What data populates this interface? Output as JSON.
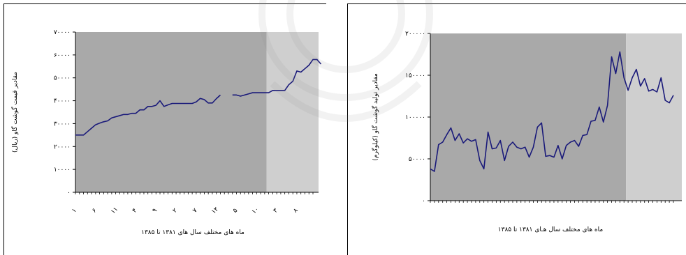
{
  "chart_data": [
    {
      "type": "line",
      "title": "",
      "xlabel": "ماه های مختلف سال های ۱۳۸۱ تا ۱۳۸۵",
      "ylabel": "مقادیر قیمت گوشت گاو (ریال)",
      "ylim": [
        0,
        70000
      ],
      "yticks": [
        0,
        10000,
        20000,
        30000,
        40000,
        50000,
        60000,
        70000
      ],
      "ytick_labels": [
        "۰",
        "۱۰۰۰۰",
        "۲۰۰۰۰",
        "۳۰۰۰۰",
        "۴۰۰۰۰",
        "۵۰۰۰۰",
        "۶۰۰۰۰",
        "۷۰۰۰۰"
      ],
      "xtick_labels": [
        "۱",
        "۶",
        "۱۱",
        "۴",
        "۹",
        "۲",
        "۷",
        "۱۲",
        "۵",
        "۱۰",
        "۳",
        "۸"
      ],
      "n_points": 60,
      "shaded_regions": [
        {
          "from": 1,
          "to": 48,
          "color": "#a9a9a9"
        },
        {
          "from": 49,
          "to": 60,
          "color": "#cfcfcf"
        }
      ],
      "series": [
        {
          "color": "#1a1a7a",
          "segments": [
            {
              "start": 1,
              "values": [
                25000,
                25000,
                25000,
                26500,
                28000,
                29500,
                30200,
                30800,
                31200,
                32500,
                33000,
                33500,
                34000,
                34000,
                34500,
                34500,
                36000,
                36000,
                37500,
                37500,
                38000,
                40000,
                37500,
                38200,
                38800,
                38800,
                38800,
                38800,
                38800,
                38800,
                39500,
                41000,
                40500,
                39000,
                39000,
                40900,
                42500
              ]
            },
            {
              "start": 40,
              "values": [
                42500,
                42500,
                42000,
                42500,
                43000,
                43500,
                43500,
                43500,
                43500,
                43500,
                44500,
                44500,
                44500,
                44500,
                47000,
                48500,
                53000,
                52500,
                54000,
                55500,
                58000,
                58000,
                56000
              ]
            }
          ]
        }
      ]
    },
    {
      "type": "line",
      "title": "",
      "xlabel": "ماه های مختلف سال هـای ۱۳۸۱ تا ۱۳۸۵",
      "ylabel": "مقادیر تولید گوشت گاو (کیلوگرم)",
      "ylim": [
        0,
        200000
      ],
      "yticks": [
        0,
        50000,
        100000,
        150000,
        200000
      ],
      "ytick_labels": [
        "۰",
        "۵۰۰۰۰",
        "۱۰۰۰۰۰",
        "۱۵۰۰۰۰",
        "۲۰۰۰۰۰"
      ],
      "n_points": 60,
      "shaded_regions": [
        {
          "from": 1,
          "to": 48,
          "color": "#a9a9a9"
        },
        {
          "from": 49,
          "to": 60,
          "color": "#cfcfcf"
        }
      ],
      "series": [
        {
          "color": "#1a1a7a",
          "segments": [
            {
              "start": 1,
              "values": [
                38000,
                35000,
                67000,
                70000,
                79000,
                87000,
                72000,
                80000,
                69000,
                74000,
                71000,
                73000,
                48000,
                38000,
                82000,
                62000,
                63000,
                72000,
                48000,
                65000,
                70000,
                64000,
                62000,
                64000,
                52000,
                64000,
                88000,
                93000,
                53000,
                54000,
                52000,
                66000,
                50000,
                66000,
                70000,
                72000,
                65000,
                78000,
                79000,
                95000,
                96000,
                112000,
                94000,
                114000,
                172000,
                152000,
                178000,
                147000,
                132000,
                147000,
                157000,
                137000,
                146000,
                131000,
                133000,
                130000,
                147000,
                120000,
                117000,
                126000
              ]
            }
          ]
        }
      ]
    }
  ]
}
